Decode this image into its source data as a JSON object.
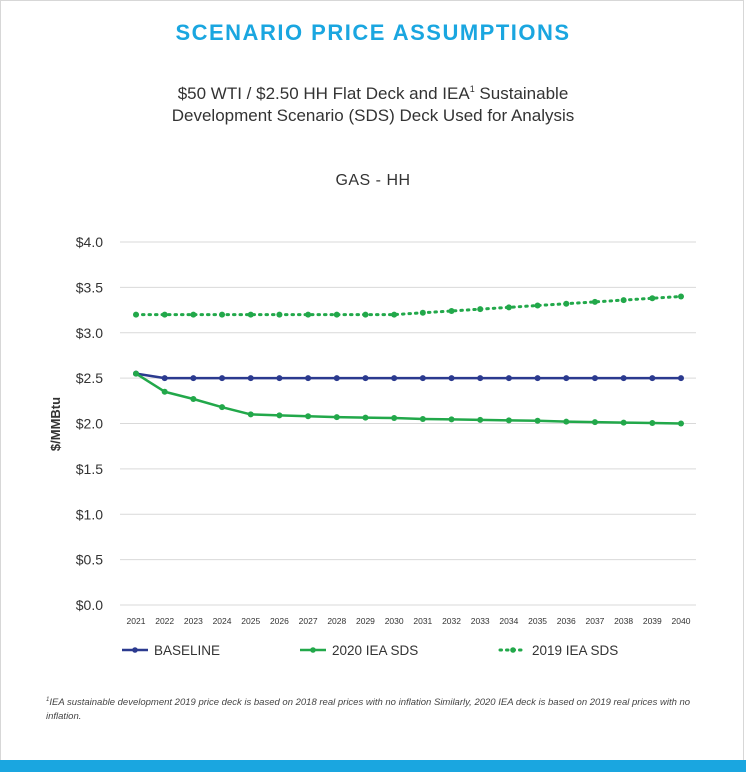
{
  "header": {
    "title": "SCENARIO PRICE ASSUMPTIONS",
    "subtitle_line1_a": "$50 WTI / $2.50 HH Flat Deck and IEA",
    "subtitle_sup": "1",
    "subtitle_line1_b": " Sustainable",
    "subtitle_line2": "Development Scenario (SDS) Deck Used for Analysis"
  },
  "footnote": {
    "sup": "1",
    "text": "IEA sustainable development 2019 price deck is based on 2018 real prices with no inflation Similarly, 2020 IEA deck is based on 2019 real prices with no inflation."
  },
  "colors": {
    "accent": "#1aa6e0",
    "baseline": "#2b3a8f",
    "iea2020": "#22a84a",
    "iea2019": "#22a84a",
    "grid": "#d9d9d9"
  },
  "chart_data": {
    "type": "line",
    "title": "GAS - HH",
    "ylabel": "$/MMBtu",
    "xlabel": "",
    "ylim": [
      0,
      4.0
    ],
    "y_ticks": [
      {
        "value": 0.0,
        "label": "$0.0"
      },
      {
        "value": 0.5,
        "label": "$0.5"
      },
      {
        "value": 1.0,
        "label": "$1.0"
      },
      {
        "value": 1.5,
        "label": "$1.5"
      },
      {
        "value": 2.0,
        "label": "$2.0"
      },
      {
        "value": 2.5,
        "label": "$2.5"
      },
      {
        "value": 3.0,
        "label": "$3.0"
      },
      {
        "value": 3.5,
        "label": "$3.5"
      },
      {
        "value": 4.0,
        "label": "$4.0"
      }
    ],
    "grid": true,
    "legend_position": "bottom",
    "x": [
      "2021",
      "2022",
      "2023",
      "2024",
      "2025",
      "2026",
      "2027",
      "2028",
      "2029",
      "2030",
      "2031",
      "2032",
      "2033",
      "2034",
      "2035",
      "2036",
      "2037",
      "2038",
      "2039",
      "2040"
    ],
    "series": [
      {
        "name": "BASELINE",
        "style": "solid",
        "color": "#2b3a8f",
        "values": [
          2.55,
          2.5,
          2.5,
          2.5,
          2.5,
          2.5,
          2.5,
          2.5,
          2.5,
          2.5,
          2.5,
          2.5,
          2.5,
          2.5,
          2.5,
          2.5,
          2.5,
          2.5,
          2.5,
          2.5
        ]
      },
      {
        "name": "2020 IEA SDS",
        "style": "solid",
        "color": "#22a84a",
        "values": [
          2.55,
          2.35,
          2.27,
          2.18,
          2.1,
          2.09,
          2.08,
          2.07,
          2.065,
          2.06,
          2.05,
          2.045,
          2.04,
          2.035,
          2.03,
          2.02,
          2.015,
          2.01,
          2.005,
          2.0
        ]
      },
      {
        "name": "2019 IEA SDS",
        "style": "dotted",
        "color": "#22a84a",
        "values": [
          3.2,
          3.2,
          3.2,
          3.2,
          3.2,
          3.2,
          3.2,
          3.2,
          3.2,
          3.2,
          3.22,
          3.24,
          3.26,
          3.28,
          3.3,
          3.32,
          3.34,
          3.36,
          3.38,
          3.4
        ]
      }
    ]
  }
}
